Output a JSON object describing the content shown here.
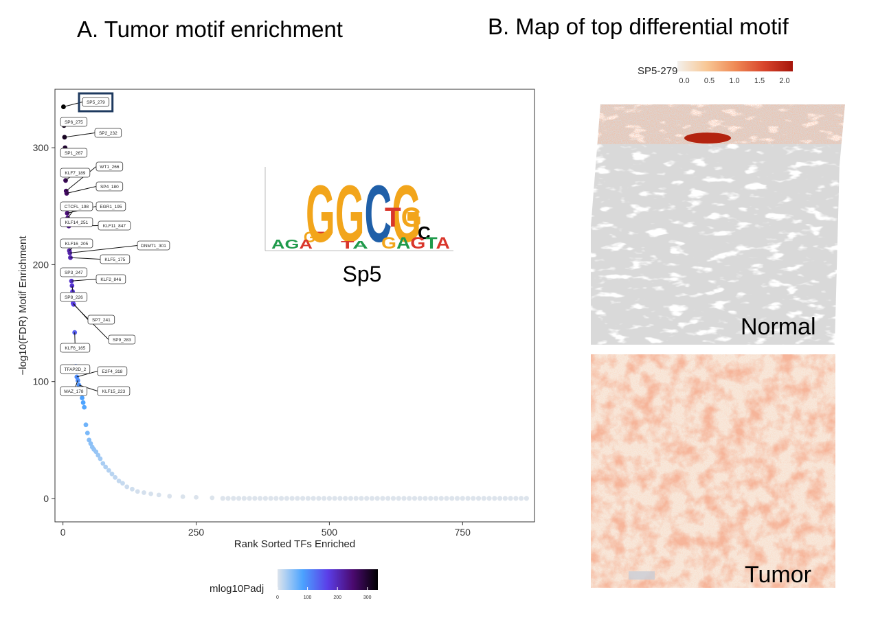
{
  "panel_a": {
    "title": "A. Tumor motif enrichment"
  },
  "panel_b": {
    "title": "B. Map of top differential motif",
    "colorbar_label": "SP5-279",
    "colorbar_ticks": [
      "0.0",
      "0.5",
      "1.0",
      "1.5",
      "2.0"
    ],
    "colorbar_range": [
      0,
      2.2
    ],
    "colorbar_colors": [
      "#f3f0ec",
      "#f8c896",
      "#ef8a55",
      "#d8452c",
      "#a6150b"
    ],
    "normal_label": "Normal",
    "tumor_label": "Tumor"
  },
  "motif_logo": {
    "name": "Sp5",
    "letters": [
      "GT",
      "GGCG",
      "TG",
      "C"
    ],
    "colors": {
      "A": "#1f9a4b",
      "C": "#1f5fa8",
      "G": "#f2a51b",
      "T": "#d9362b"
    }
  },
  "chart_data": {
    "type": "scatter",
    "title": "A. Tumor motif enrichment",
    "xlabel": "Rank Sorted TFs Enriched",
    "ylabel": "−log10(FDR) Motif Enrichment",
    "xlim": [
      -15,
      885
    ],
    "ylim": [
      -20,
      350
    ],
    "xticks": [
      0,
      250,
      500,
      750
    ],
    "yticks": [
      0,
      100,
      200,
      300
    ],
    "grid": false,
    "legend": "bottom",
    "colorbar": {
      "label": "mlog10Padj",
      "ticks": [
        0,
        100,
        200,
        300
      ],
      "range": [
        0,
        335
      ],
      "colors": [
        "#dde4ec",
        "#4ba3ff",
        "#5b3ee8",
        "#4b0a70",
        "#000000"
      ]
    },
    "top_points": [
      {
        "x": 1,
        "y": 335
      },
      {
        "x": 2,
        "y": 319
      },
      {
        "x": 3,
        "y": 309
      },
      {
        "x": 4,
        "y": 300
      },
      {
        "x": 5,
        "y": 272
      },
      {
        "x": 6,
        "y": 263
      },
      {
        "x": 7,
        "y": 261
      },
      {
        "x": 8,
        "y": 244
      },
      {
        "x": 9,
        "y": 240
      },
      {
        "x": 10,
        "y": 236
      },
      {
        "x": 11,
        "y": 233
      },
      {
        "x": 12,
        "y": 212
      },
      {
        "x": 13,
        "y": 210
      },
      {
        "x": 14,
        "y": 206
      },
      {
        "x": 15,
        "y": 194
      },
      {
        "x": 16,
        "y": 186
      },
      {
        "x": 17,
        "y": 182
      },
      {
        "x": 18,
        "y": 177
      },
      {
        "x": 19,
        "y": 167
      },
      {
        "x": 20,
        "y": 166
      },
      {
        "x": 22,
        "y": 142
      },
      {
        "x": 24,
        "y": 113
      },
      {
        "x": 26,
        "y": 104
      },
      {
        "x": 28,
        "y": 101
      },
      {
        "x": 30,
        "y": 97
      },
      {
        "x": 32,
        "y": 93
      },
      {
        "x": 34,
        "y": 90
      },
      {
        "x": 36,
        "y": 86
      },
      {
        "x": 38,
        "y": 82
      },
      {
        "x": 40,
        "y": 78
      },
      {
        "x": 43,
        "y": 63
      },
      {
        "x": 46,
        "y": 56
      },
      {
        "x": 49,
        "y": 50
      },
      {
        "x": 52,
        "y": 47
      },
      {
        "x": 55,
        "y": 44
      },
      {
        "x": 58,
        "y": 42
      },
      {
        "x": 62,
        "y": 40
      },
      {
        "x": 66,
        "y": 37
      },
      {
        "x": 70,
        "y": 34
      },
      {
        "x": 75,
        "y": 30
      },
      {
        "x": 80,
        "y": 27
      },
      {
        "x": 86,
        "y": 24
      },
      {
        "x": 92,
        "y": 21
      },
      {
        "x": 98,
        "y": 18
      },
      {
        "x": 105,
        "y": 15
      },
      {
        "x": 112,
        "y": 13
      },
      {
        "x": 120,
        "y": 10
      },
      {
        "x": 130,
        "y": 8
      },
      {
        "x": 140,
        "y": 6
      },
      {
        "x": 152,
        "y": 5
      },
      {
        "x": 165,
        "y": 4
      },
      {
        "x": 180,
        "y": 3
      },
      {
        "x": 200,
        "y": 2
      },
      {
        "x": 225,
        "y": 1.5
      },
      {
        "x": 250,
        "y": 1
      },
      {
        "x": 280,
        "y": 0.6
      }
    ],
    "tail": {
      "x_start": 300,
      "x_end": 870,
      "step": 10,
      "y": 0.1
    },
    "labels": [
      {
        "text": "SP5_279",
        "x": 1,
        "y": 335,
        "highlight": true
      },
      {
        "text": "SP6_275",
        "x": 2,
        "y": 319
      },
      {
        "text": "SP2_232",
        "x": 3,
        "y": 309
      },
      {
        "text": "SP1_267",
        "x": 4,
        "y": 300
      },
      {
        "text": "KLF7_189",
        "x": 5,
        "y": 272
      },
      {
        "text": "WT1_266",
        "x": 6,
        "y": 263
      },
      {
        "text": "SP4_180",
        "x": 7,
        "y": 261
      },
      {
        "text": "EGR1_195",
        "x": 8,
        "y": 244
      },
      {
        "text": "CTCFL_198",
        "x": 9,
        "y": 240
      },
      {
        "text": "KLF14_251",
        "x": 10,
        "y": 236
      },
      {
        "text": "KLF11_847",
        "x": 11,
        "y": 233
      },
      {
        "text": "KLF16_205",
        "x": 12,
        "y": 212
      },
      {
        "text": "DNMT1_301",
        "x": 13,
        "y": 210
      },
      {
        "text": "KLF5_175",
        "x": 14,
        "y": 206
      },
      {
        "text": "SP3_247",
        "x": 15,
        "y": 194
      },
      {
        "text": "KLF2_846",
        "x": 16,
        "y": 186
      },
      {
        "text": "SP8_226",
        "x": 17,
        "y": 182
      },
      {
        "text": "SP7_241",
        "x": 19,
        "y": 167
      },
      {
        "text": "SP9_283",
        "x": 20,
        "y": 166
      },
      {
        "text": "KLF6_165",
        "x": 22,
        "y": 142
      },
      {
        "text": "TFAP2D_2",
        "x": 24,
        "y": 113
      },
      {
        "text": "E2F4_318",
        "x": 26,
        "y": 104
      },
      {
        "text": "MAZ_178",
        "x": 28,
        "y": 101
      },
      {
        "text": "KLF15_223",
        "x": 30,
        "y": 97
      }
    ]
  }
}
